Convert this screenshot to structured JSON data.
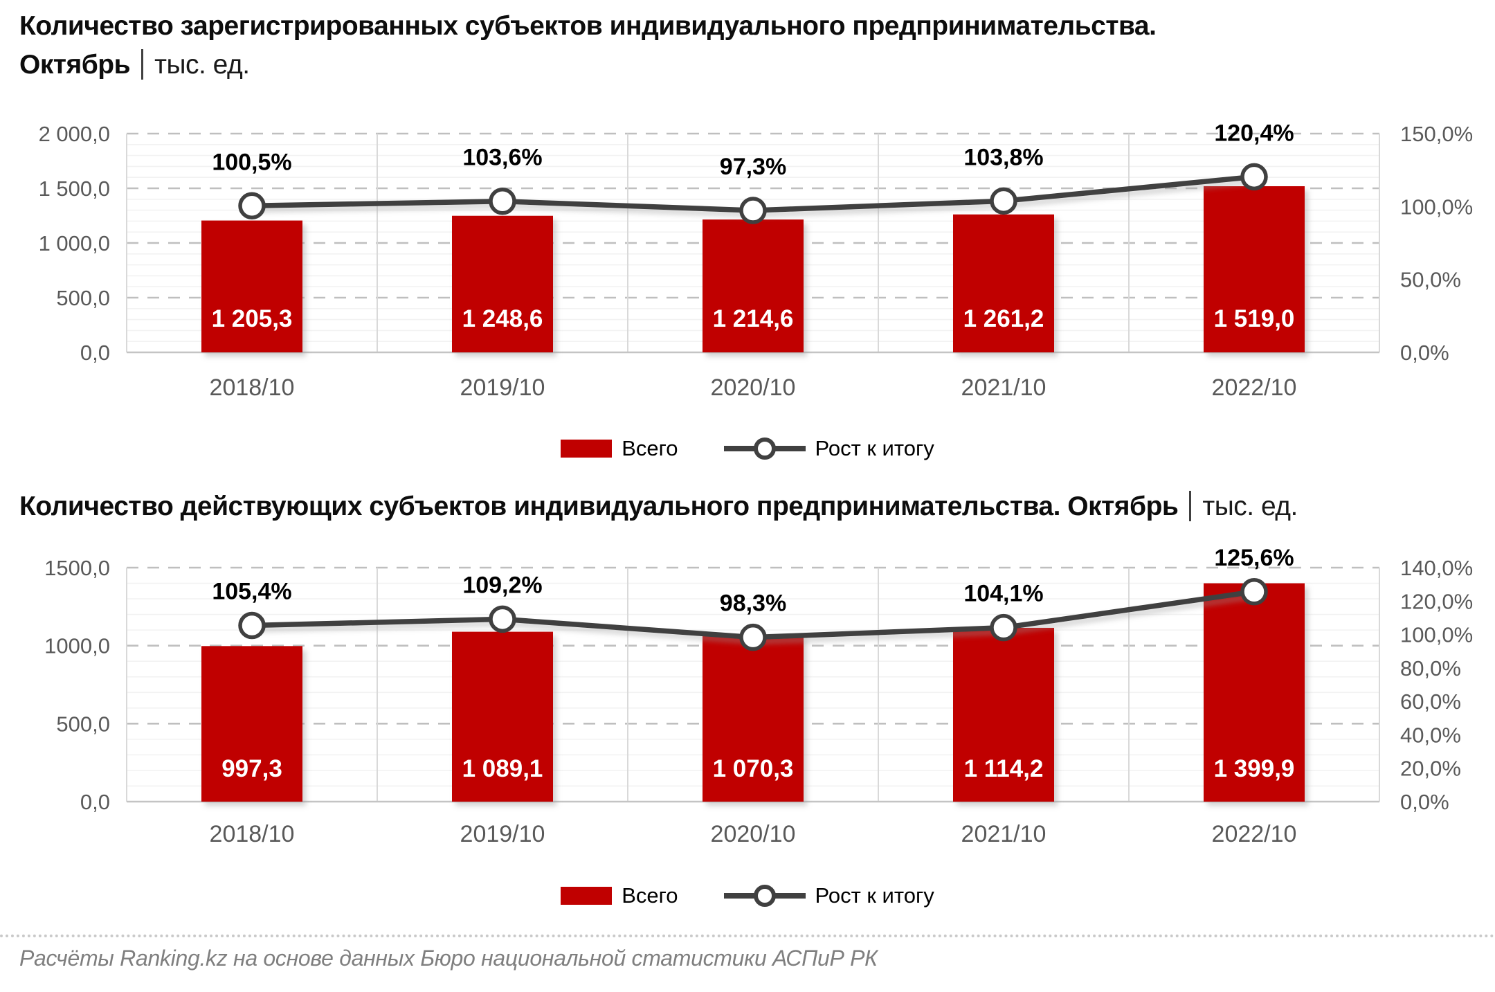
{
  "page": {
    "titles": [
      {
        "main": "Количество зарегистрированных субъектов индивидуального предпринимательства.",
        "period": "Октябрь",
        "units": "тыс. ед."
      },
      {
        "main": "Количество действующих субъектов индивидуального предпринимательства.",
        "period": "Октябрь",
        "units": "тыс. ед."
      }
    ],
    "legend": {
      "bar": "Всего",
      "line": "Рост к итогу"
    },
    "footer": "Расчёты Ranking.kz на основе данных Бюро национальной статистики АСПиР РК"
  },
  "colors": {
    "bar": "#c00000",
    "line": "#404040",
    "marker_fill": "#ffffff",
    "grid_major": "#bfbfbf",
    "grid_minor": "#f2f2f2",
    "plot_border": "#d9d9d9",
    "axis_line": "#c4c4c4",
    "axis_text": "#595959",
    "bar_label": "#ffffff",
    "point_label": "#000000"
  },
  "chart_data": [
    {
      "type": "bar",
      "title": "Количество зарегистрированных субъектов индивидуального предпринимательства. Октябрь | тыс. ед.",
      "categories": [
        "2018/10",
        "2019/10",
        "2020/10",
        "2021/10",
        "2022/10"
      ],
      "series": [
        {
          "name": "Всего",
          "kind": "bar",
          "axis": "left",
          "values": [
            1205.3,
            1248.6,
            1214.6,
            1261.2,
            1519.0
          ],
          "labels": [
            "1 205,3",
            "1 248,6",
            "1 214,6",
            "1 261,2",
            "1 519,0"
          ]
        },
        {
          "name": "Рост к итогу",
          "kind": "line",
          "axis": "right",
          "values": [
            100.5,
            103.6,
            97.3,
            103.8,
            120.4
          ],
          "labels": [
            "100,5%",
            "103,6%",
            "97,3%",
            "103,8%",
            "120,4%"
          ]
        }
      ],
      "left_axis": {
        "min": 0,
        "max": 2000,
        "major_step": 500,
        "minor_step": 100,
        "tick_labels": [
          "2 000,0",
          "1 500,0",
          "1 000,0",
          "500,0",
          "0,0"
        ]
      },
      "right_axis": {
        "min": 0,
        "max": 150,
        "major_step": 50,
        "tick_labels": [
          "150,0%",
          "100,0%",
          "50,0%",
          "0,0%"
        ]
      },
      "legend_position": "bottom",
      "grid": "horizontal: major dashed, minor solid; vertical category separators"
    },
    {
      "type": "bar",
      "title": "Количество действующих субъектов индивидуального предпринимательства. Октябрь | тыс. ед.",
      "categories": [
        "2018/10",
        "2019/10",
        "2020/10",
        "2021/10",
        "2022/10"
      ],
      "series": [
        {
          "name": "Всего",
          "kind": "bar",
          "axis": "left",
          "values": [
            997.3,
            1089.1,
            1070.3,
            1114.2,
            1399.9
          ],
          "labels": [
            "997,3",
            "1 089,1",
            "1 070,3",
            "1 114,2",
            "1 399,9"
          ]
        },
        {
          "name": "Рост к итогу",
          "kind": "line",
          "axis": "right",
          "values": [
            105.4,
            109.2,
            98.3,
            104.1,
            125.6
          ],
          "labels": [
            "105,4%",
            "109,2%",
            "98,3%",
            "104,1%",
            "125,6%"
          ]
        }
      ],
      "left_axis": {
        "min": 0,
        "max": 1500,
        "major_step": 500,
        "minor_step": 100,
        "tick_labels": [
          "1500,0",
          "1000,0",
          "500,0",
          "0,0"
        ]
      },
      "right_axis": {
        "min": 0,
        "max": 140,
        "major_step": 20,
        "tick_labels": [
          "140,0%",
          "120,0%",
          "100,0%",
          "80,0%",
          "60,0%",
          "40,0%",
          "20,0%",
          "0,0%"
        ]
      },
      "legend_position": "bottom",
      "grid": "horizontal: major dashed, minor solid; vertical category separators"
    }
  ]
}
